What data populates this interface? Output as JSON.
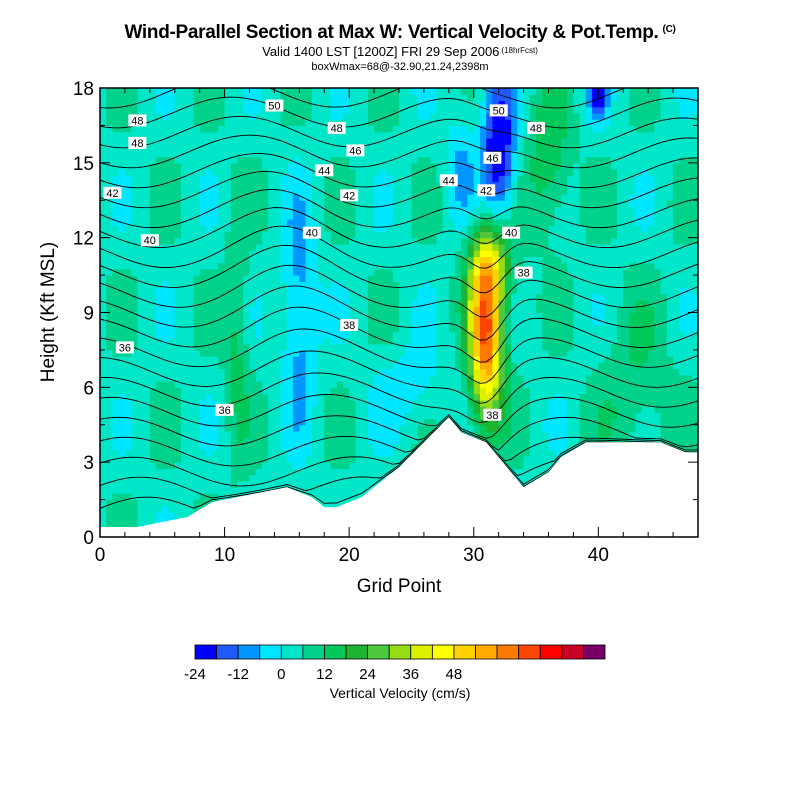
{
  "title": "Wind-Parallel Section at Max W: Vertical Velocity & Pot.Temp.",
  "copyright_mark": "(C)",
  "subtitle": "Valid 1400 LST [1200Z] FRI 29 Sep 2006",
  "subtitle_note": "(18hrFcst)",
  "info_line": "boxWmax=68@-32.90,21.24,2398m",
  "chart_data": {
    "type": "heatmap",
    "xlabel": "Grid Point",
    "ylabel": "Height (Kft MSL)",
    "xlim": [
      0,
      48
    ],
    "ylim": [
      0,
      18
    ],
    "x_ticks": [
      "0",
      "10",
      "20",
      "30",
      "40"
    ],
    "x_tick_values": [
      0,
      10,
      20,
      30,
      40
    ],
    "y_ticks": [
      "0",
      "3",
      "6",
      "9",
      "12",
      "15",
      "18"
    ],
    "y_tick_values": [
      0,
      3,
      6,
      9,
      12,
      15,
      18
    ],
    "colorbar": {
      "label": "Vertical Velocity (cm/s)",
      "tick_labels": [
        "-24",
        "-12",
        "0",
        "12",
        "24",
        "36",
        "48"
      ],
      "tick_values": [
        -24,
        -12,
        0,
        12,
        24,
        36,
        48
      ],
      "min": -24,
      "max": 54,
      "step": 6,
      "colors": [
        "#0000ff",
        "#1e5aff",
        "#0096ff",
        "#00e6ff",
        "#00e6c8",
        "#00d28c",
        "#00c85a",
        "#1eb432",
        "#50c83c",
        "#96dc14",
        "#dcf000",
        "#ffff00",
        "#ffd200",
        "#ffaa00",
        "#ff7800",
        "#ff4600",
        "#ff0000",
        "#c80028",
        "#780064"
      ]
    },
    "terrain_height": [
      {
        "x": 0,
        "y": 0.4
      },
      {
        "x": 3,
        "y": 0.4
      },
      {
        "x": 5,
        "y": 0.6
      },
      {
        "x": 7,
        "y": 0.8
      },
      {
        "x": 9,
        "y": 1.4
      },
      {
        "x": 11,
        "y": 1.6
      },
      {
        "x": 13,
        "y": 1.8
      },
      {
        "x": 15,
        "y": 2.0
      },
      {
        "x": 17,
        "y": 1.6
      },
      {
        "x": 18,
        "y": 1.2
      },
      {
        "x": 19,
        "y": 1.2
      },
      {
        "x": 21,
        "y": 1.6
      },
      {
        "x": 23,
        "y": 2.4
      },
      {
        "x": 24,
        "y": 2.8
      },
      {
        "x": 26,
        "y": 3.8
      },
      {
        "x": 28,
        "y": 4.8
      },
      {
        "x": 29,
        "y": 4.2
      },
      {
        "x": 30,
        "y": 4.0
      },
      {
        "x": 31,
        "y": 3.8
      },
      {
        "x": 32,
        "y": 3.2
      },
      {
        "x": 33,
        "y": 2.6
      },
      {
        "x": 34,
        "y": 2.0
      },
      {
        "x": 36,
        "y": 2.6
      },
      {
        "x": 37,
        "y": 3.2
      },
      {
        "x": 39,
        "y": 3.8
      },
      {
        "x": 41,
        "y": 3.8
      },
      {
        "x": 43,
        "y": 3.8
      },
      {
        "x": 45,
        "y": 3.8
      },
      {
        "x": 47,
        "y": 3.4
      },
      {
        "x": 48,
        "y": 3.4
      }
    ],
    "updraft_max_cm_s": 68,
    "theta_contour_labels": [
      {
        "text": "50",
        "x": 14.0,
        "y": 17.3
      },
      {
        "text": "48",
        "x": 3.0,
        "y": 16.7
      },
      {
        "text": "48",
        "x": 3.0,
        "y": 15.8
      },
      {
        "text": "48",
        "x": 19.0,
        "y": 16.4
      },
      {
        "text": "46",
        "x": 20.5,
        "y": 15.5
      },
      {
        "text": "44",
        "x": 18.0,
        "y": 14.7
      },
      {
        "text": "44",
        "x": 28.0,
        "y": 14.3
      },
      {
        "text": "42",
        "x": 1.0,
        "y": 13.8
      },
      {
        "text": "42",
        "x": 20.0,
        "y": 13.7
      },
      {
        "text": "42",
        "x": 31.0,
        "y": 13.9
      },
      {
        "text": "40",
        "x": 4.0,
        "y": 11.9
      },
      {
        "text": "40",
        "x": 17.0,
        "y": 12.2
      },
      {
        "text": "40",
        "x": 33.0,
        "y": 12.2
      },
      {
        "text": "38",
        "x": 20.0,
        "y": 8.5
      },
      {
        "text": "38",
        "x": 34.0,
        "y": 10.6
      },
      {
        "text": "38",
        "x": 31.5,
        "y": 4.9
      },
      {
        "text": "36",
        "x": 2.0,
        "y": 7.6
      },
      {
        "text": "36",
        "x": 10.0,
        "y": 5.1
      },
      {
        "text": "46",
        "x": 31.5,
        "y": 15.2
      },
      {
        "text": "48",
        "x": 35.0,
        "y": 16.4
      },
      {
        "text": "50",
        "x": 32.0,
        "y": 17.1
      }
    ]
  }
}
